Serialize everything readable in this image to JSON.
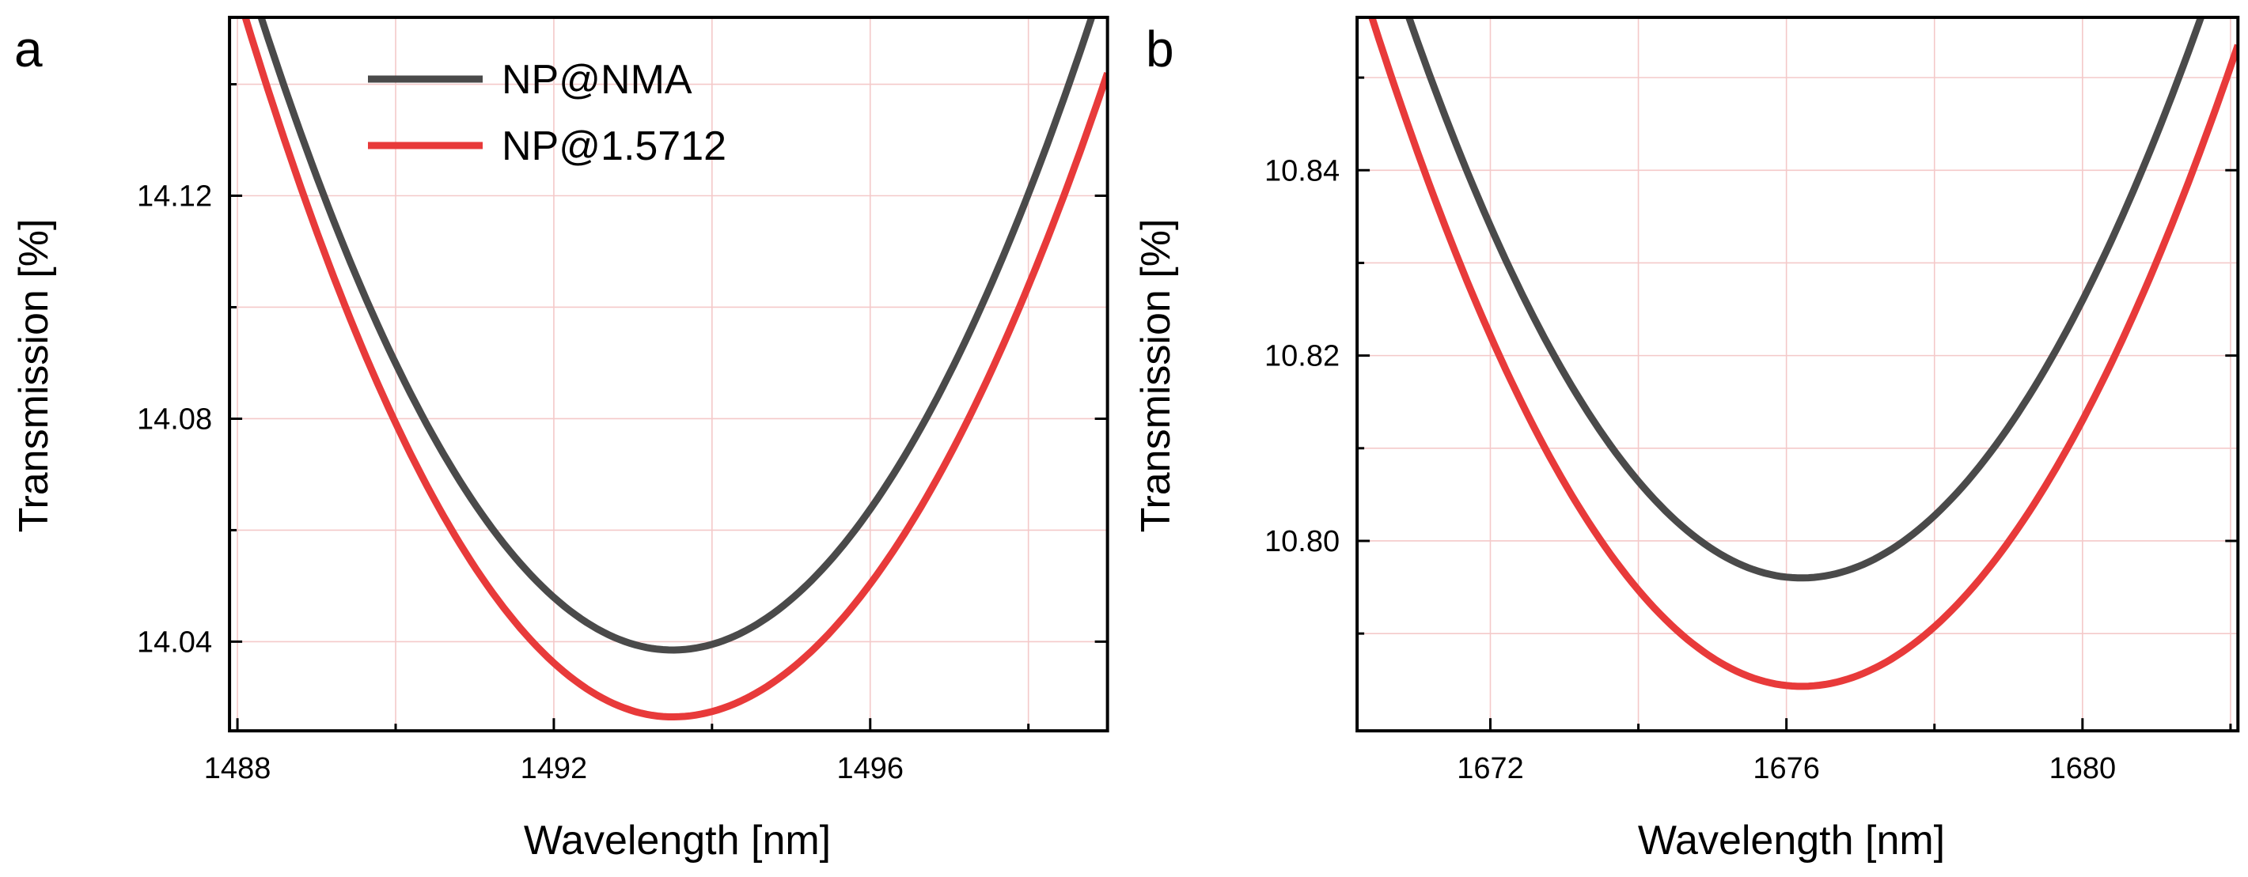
{
  "chart_data": [
    {
      "panel": "a",
      "type": "line",
      "xlabel": "Wavelength [nm]",
      "ylabel": "Transmission [%]",
      "xlim": [
        1487.9,
        1499.0
      ],
      "ylim": [
        14.024,
        14.152
      ],
      "xticks": [
        1488,
        1492,
        1496
      ],
      "xtick_labels": [
        "1488",
        "1492",
        "1496"
      ],
      "yticks": [
        14.04,
        14.08,
        14.12
      ],
      "ytick_labels": [
        "14.04",
        "14.08",
        "14.12"
      ],
      "x_minor_ticks": [
        1490,
        1494,
        1498
      ],
      "y_minor_ticks": [
        14.06,
        14.1,
        14.14
      ],
      "grid": true,
      "legend_position": "top-left",
      "series": [
        {
          "name": "NP@NMA",
          "color": "#4a4a4a",
          "min_x": 1493.5,
          "min_y": 14.0385,
          "x": [
            1488.3,
            1493.5,
            1498.8
          ],
          "y": [
            14.152,
            14.0385,
            14.152
          ]
        },
        {
          "name": "NP@1.5712",
          "color": "#e83a3a",
          "min_x": 1493.5,
          "min_y": 14.0265,
          "x": [
            1488.1,
            1493.5,
            1499.0
          ],
          "y": [
            14.152,
            14.0265,
            14.142
          ]
        }
      ]
    },
    {
      "panel": "b",
      "type": "line",
      "xlabel": "Wavelength [nm]",
      "ylabel": "Transmission [%]",
      "xlim": [
        1670.2,
        1682.1
      ],
      "ylim": [
        10.7795,
        10.8565
      ],
      "xticks": [
        1672,
        1676,
        1680
      ],
      "xtick_labels": [
        "1672",
        "1676",
        "1680"
      ],
      "yticks": [
        10.8,
        10.82,
        10.84
      ],
      "ytick_labels": [
        "10.80",
        "10.82",
        "10.84"
      ],
      "x_minor_ticks": [
        1674,
        1678,
        1682
      ],
      "y_minor_ticks": [
        10.79,
        10.81,
        10.83,
        10.85
      ],
      "grid": true,
      "legend_position": "none",
      "series": [
        {
          "name": "NP@NMA",
          "color": "#4a4a4a",
          "min_x": 1676.2,
          "min_y": 10.796,
          "x": [
            1670.9,
            1676.2,
            1681.6
          ],
          "y": [
            10.8565,
            10.796,
            10.8565
          ]
        },
        {
          "name": "NP@1.5712",
          "color": "#e83a3a",
          "min_x": 1676.2,
          "min_y": 10.7843,
          "x": [
            1670.4,
            1676.2,
            1682.1
          ],
          "y": [
            10.8565,
            10.7843,
            10.8535
          ]
        }
      ]
    }
  ]
}
